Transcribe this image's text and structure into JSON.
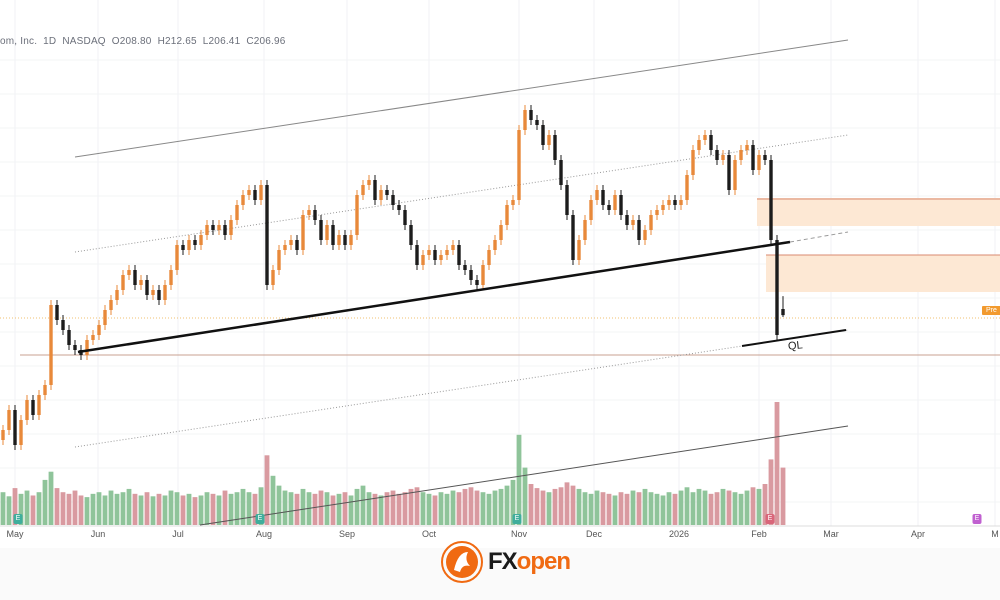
{
  "header": {
    "name": "om, Inc.",
    "interval": "1D",
    "exchange": "NASDAQ",
    "open": "O208.80",
    "high": "H212.65",
    "low": "L206.41",
    "close": "C206.96"
  },
  "badges": {
    "pre": "Pre",
    "ql": "QL",
    "earnings": "E"
  },
  "logo": {
    "fx": "FX",
    "open": "open"
  },
  "colors": {
    "up": "#e8893a",
    "down": "#1c1c1c",
    "vol_up": "#8fc49a",
    "vol_down": "#d99aa0",
    "zone": "#fde8d4",
    "zone_border": "#e0a080",
    "support": "#111111",
    "earn_past": "#3fae9c",
    "earn_recent": "#d9667a",
    "earn_future": "#c060d0"
  },
  "chart_data": {
    "type": "candlestick",
    "ylim": [
      145.5,
      291
    ],
    "xlabels": [
      "May",
      "Jun",
      "Jul",
      "Aug",
      "Sep",
      "Oct",
      "Nov",
      "Dec",
      "2026",
      "Feb",
      "Mar",
      "Apr",
      "M"
    ],
    "closes": [
      172.5,
      178.5,
      168,
      175.5,
      181.5,
      177,
      183,
      186,
      210,
      205.5,
      202.5,
      198,
      196.5,
      195,
      199.5,
      201,
      204,
      208.5,
      211.5,
      214.5,
      219,
      220.5,
      216,
      217.5,
      213,
      214.5,
      211.5,
      216,
      220.5,
      228,
      226.5,
      229.5,
      228,
      231,
      234,
      232.5,
      234,
      231,
      235.5,
      240,
      243,
      244.5,
      241.5,
      246,
      216,
      220.5,
      226.5,
      228,
      229.5,
      226.5,
      237,
      238.5,
      235.5,
      229.5,
      234,
      228,
      231,
      228,
      231,
      243,
      246,
      247.5,
      241.5,
      244.5,
      243,
      240,
      238.5,
      234,
      228,
      222,
      225,
      226.5,
      223.5,
      225,
      226.5,
      228,
      222,
      220.5,
      217.5,
      216,
      222,
      226.5,
      229.5,
      234,
      240,
      241.5,
      262.5,
      268.5,
      265.5,
      264,
      258,
      261,
      253.5,
      246,
      237,
      223.5,
      229.5,
      235.5,
      241.5,
      244.5,
      240,
      238.5,
      243,
      237,
      234,
      235.5,
      229.5,
      232.5,
      237,
      238.5,
      240,
      241.5,
      240,
      241.5,
      249,
      256.5,
      259.5,
      261,
      256.5,
      253.5,
      255,
      244.5,
      253.5,
      256.5,
      258,
      250.5,
      255,
      253.5,
      229.5,
      201,
      206.96
    ],
    "volumes": [
      40,
      35,
      45,
      38,
      42,
      36,
      40,
      55,
      65,
      45,
      40,
      38,
      42,
      36,
      34,
      38,
      40,
      36,
      42,
      38,
      40,
      44,
      38,
      36,
      40,
      35,
      38,
      36,
      42,
      40,
      36,
      38,
      34,
      36,
      40,
      38,
      36,
      42,
      38,
      40,
      44,
      40,
      38,
      46,
      85,
      60,
      48,
      42,
      40,
      38,
      44,
      40,
      38,
      42,
      40,
      36,
      38,
      40,
      36,
      44,
      48,
      40,
      38,
      36,
      40,
      42,
      38,
      40,
      44,
      46,
      40,
      38,
      36,
      40,
      38,
      42,
      40,
      44,
      46,
      42,
      40,
      38,
      42,
      44,
      48,
      55,
      110,
      70,
      50,
      45,
      42,
      40,
      44,
      46,
      52,
      48,
      44,
      40,
      38,
      42,
      40,
      38,
      36,
      40,
      38,
      42,
      40,
      44,
      40,
      38,
      36,
      40,
      38,
      42,
      46,
      40,
      44,
      42,
      38,
      40,
      44,
      42,
      40,
      38,
      42,
      46,
      44,
      50,
      80,
      150,
      70
    ],
    "earnings_markers": [
      "May",
      "Aug",
      "Nov",
      "Feb",
      "Apr"
    ]
  }
}
